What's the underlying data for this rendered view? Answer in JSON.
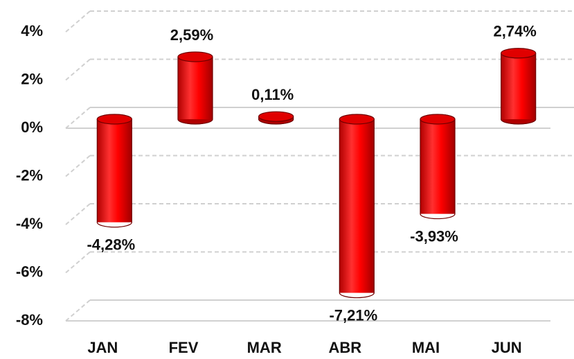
{
  "chart_data": {
    "type": "bar",
    "categories": [
      "JAN",
      "FEV",
      "MAR",
      "ABR",
      "MAI",
      "JUN"
    ],
    "values": [
      -4.28,
      2.59,
      0.11,
      -7.21,
      -3.93,
      2.74
    ],
    "value_labels": [
      "-4,28%",
      "2,59%",
      "0,11%",
      "-7,21%",
      "-3,93%",
      "2,74%"
    ],
    "color": "#ff0000",
    "ylim": [
      -8,
      4
    ],
    "yticks": [
      {
        "value": 4,
        "label": "4%"
      },
      {
        "value": 2,
        "label": "2%"
      },
      {
        "value": 0,
        "label": "0%"
      },
      {
        "value": -2,
        "label": "-2%"
      },
      {
        "value": -4,
        "label": "-4%"
      },
      {
        "value": -6,
        "label": "-6%"
      },
      {
        "value": -8,
        "label": "-8%"
      }
    ],
    "grid": true
  }
}
